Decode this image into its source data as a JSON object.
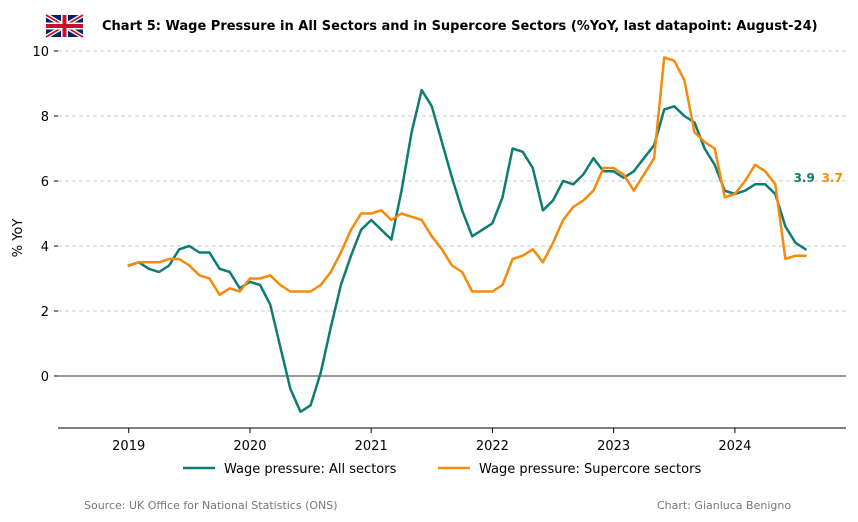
{
  "header": {
    "title": "Chart 5: Wage Pressure in All Sectors and in Supercore Sectors (%YoY, last datapoint: August-24)"
  },
  "footer": {
    "source": "Source: UK Office for National Statistics (ONS)",
    "credit": "Chart: Gianluca Benigno"
  },
  "chart_data": {
    "type": "line",
    "title": "Chart 5: Wage Pressure in All Sectors and in Supercore Sectors (%YoY, last datapoint: August-24)",
    "xlabel": "",
    "ylabel": "% YoY",
    "x_start": "2019-01",
    "x_end": "2024-08",
    "x_frequency": "monthly",
    "xlim": [
      "2018-06",
      "2024-12"
    ],
    "ylim": [
      -1.6,
      10.4
    ],
    "x_ticks": [
      "2019",
      "2020",
      "2021",
      "2022",
      "2023",
      "2024"
    ],
    "y_ticks": [
      0,
      2,
      4,
      6,
      8,
      10
    ],
    "grid": "horizontal dashed",
    "legend_position": "bottom",
    "series": [
      {
        "name": "Wage pressure: All sectors",
        "color": "#0e7c74",
        "end_label": "3.9",
        "values": [
          3.4,
          3.5,
          3.3,
          3.2,
          3.4,
          3.9,
          4.0,
          3.8,
          3.8,
          3.3,
          3.2,
          2.7,
          2.9,
          2.8,
          2.2,
          0.9,
          -0.4,
          -1.1,
          -0.9,
          0.1,
          1.5,
          2.8,
          3.7,
          4.5,
          4.8,
          4.5,
          4.2,
          5.7,
          7.5,
          8.8,
          8.3,
          7.2,
          6.1,
          5.1,
          4.3,
          4.5,
          4.7,
          5.5,
          7.0,
          6.9,
          6.4,
          5.1,
          5.4,
          6.0,
          5.9,
          6.2,
          6.7,
          6.3,
          6.3,
          6.1,
          6.3,
          6.7,
          7.1,
          8.2,
          8.3,
          8.0,
          7.8,
          7.0,
          6.5,
          5.7,
          5.6,
          5.7,
          5.9,
          5.9,
          5.6,
          4.6,
          4.1,
          3.9
        ]
      },
      {
        "name": "Wage pressure: Supercore sectors",
        "color": "#f58a0b",
        "end_label": "3.7",
        "values": [
          3.4,
          3.5,
          3.5,
          3.5,
          3.6,
          3.6,
          3.4,
          3.1,
          3.0,
          2.5,
          2.7,
          2.6,
          3.0,
          3.0,
          3.1,
          2.8,
          2.6,
          2.6,
          2.6,
          2.8,
          3.2,
          3.8,
          4.5,
          5.0,
          5.0,
          5.1,
          4.8,
          5.0,
          4.9,
          4.8,
          4.3,
          3.9,
          3.4,
          3.2,
          2.6,
          2.6,
          2.6,
          2.8,
          3.6,
          3.7,
          3.9,
          3.5,
          4.1,
          4.8,
          5.2,
          5.4,
          5.7,
          6.4,
          6.4,
          6.2,
          5.7,
          6.2,
          6.7,
          9.8,
          9.7,
          9.1,
          7.5,
          7.2,
          7.0,
          5.5,
          5.6,
          6.0,
          6.5,
          6.3,
          5.9,
          3.6,
          3.7,
          3.7
        ]
      }
    ]
  },
  "legend_line_samples": [
    {
      "series_index": 0
    },
    {
      "series_index": 1
    }
  ]
}
